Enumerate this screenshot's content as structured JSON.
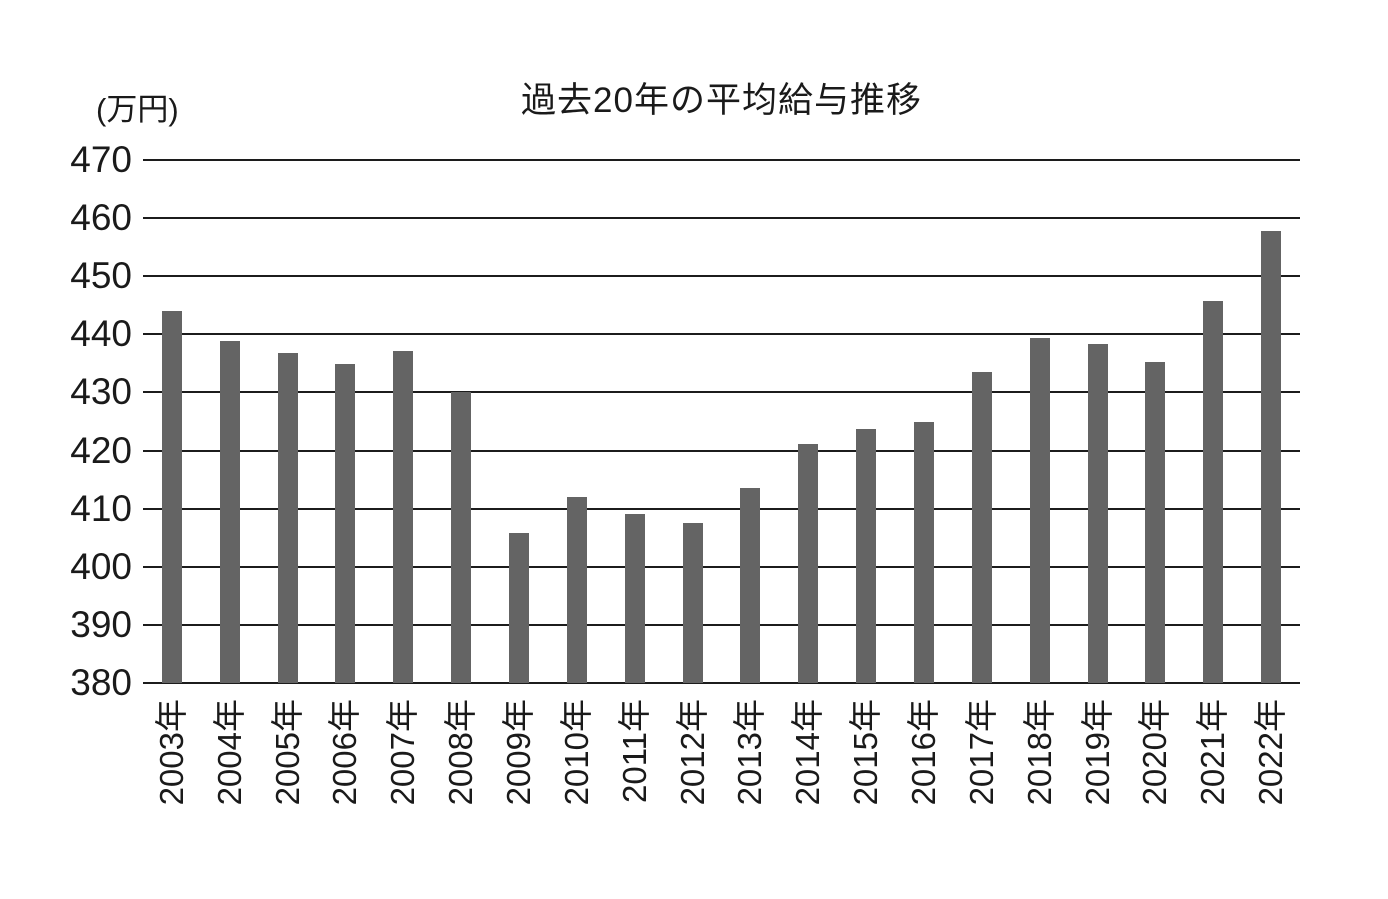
{
  "chart_data": {
    "type": "bar",
    "title": "過去20年の平均給与推移",
    "unit_label": "(万円)",
    "xlabel": "",
    "ylabel": "(万円)",
    "categories": [
      "2003年",
      "2004年",
      "2005年",
      "2006年",
      "2007年",
      "2008年",
      "2009年",
      "2010年",
      "2011年",
      "2012年",
      "2013年",
      "2014年",
      "2015年",
      "2016年",
      "2017年",
      "2018年",
      "2019年",
      "2020年",
      "2021年",
      "2022年"
    ],
    "values": [
      444.0,
      438.9,
      436.8,
      434.9,
      437.2,
      430.0,
      405.8,
      412.0,
      409.0,
      407.6,
      413.5,
      421.1,
      423.7,
      424.9,
      433.5,
      439.4,
      438.3,
      435.3,
      445.8,
      457.8
    ],
    "ylim": [
      380,
      470
    ],
    "ytick_step": 10,
    "ytick_labels": [
      "380",
      "390",
      "400",
      "410",
      "420",
      "430",
      "440",
      "450",
      "460",
      "470"
    ],
    "grid": "horizontal",
    "legend_position": "none",
    "bar_color": "#646464",
    "gridline_color": "#1c1c1c",
    "text_color": "#1a1a1a",
    "background_color": "#ffffff"
  }
}
